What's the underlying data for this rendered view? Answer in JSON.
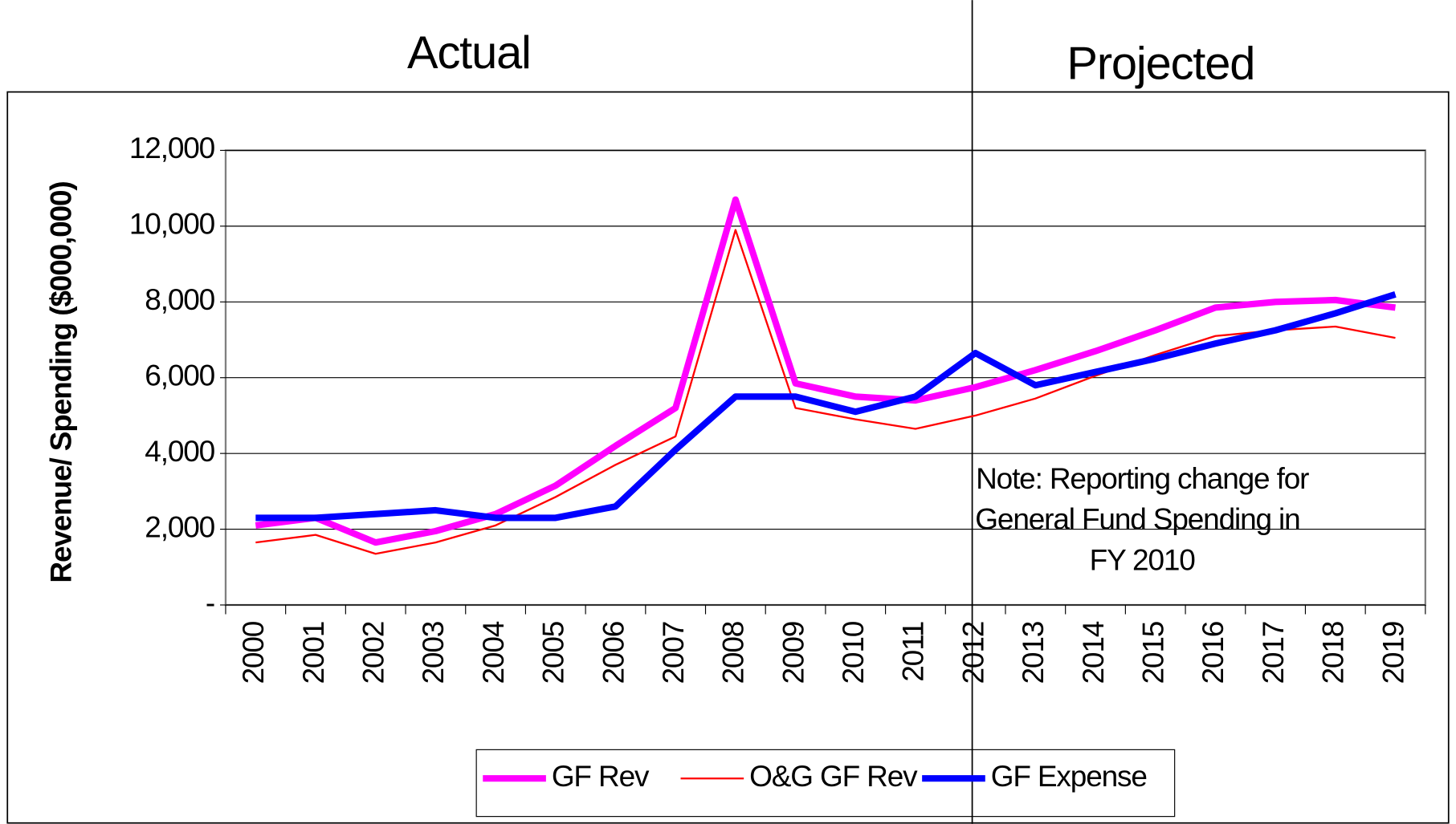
{
  "chart_data": {
    "type": "line",
    "annotations": [
      "Actual",
      "Projected",
      "Note: Reporting change for",
      "General Fund Spending in",
      "FY 2010"
    ],
    "y_label": "Revenue/ Spending ($000,000)",
    "categories": [
      "2000",
      "2001",
      "2002",
      "2003",
      "2004",
      "2005",
      "2006",
      "2007",
      "2008",
      "2009",
      "2010",
      "2011",
      "2012",
      "2013",
      "2014",
      "2015",
      "2016",
      "2017",
      "2018",
      "2019"
    ],
    "series": [
      {
        "name": "GF Rev",
        "color": "#ff00ff",
        "values": [
          2100,
          2300,
          1650,
          1950,
          2400,
          3150,
          4200,
          5200,
          10700,
          5850,
          5500,
          5400,
          5750,
          6200,
          6700,
          7250,
          7850,
          8000,
          8050,
          7850
        ]
      },
      {
        "name": "O&G GF Rev",
        "color": "#ff0000",
        "values": [
          1650,
          1850,
          1350,
          1650,
          2100,
          2850,
          3700,
          4450,
          9900,
          5200,
          4900,
          4650,
          5000,
          5450,
          6050,
          6600,
          7100,
          7250,
          7350,
          7050
        ]
      },
      {
        "name": "GF Expense",
        "color": "#0000ff",
        "values": [
          2300,
          2300,
          2400,
          2500,
          2300,
          2300,
          2600,
          4100,
          5500,
          5500,
          5100,
          5500,
          6650,
          5800,
          6150,
          6500,
          6900,
          7250,
          7700,
          8200
        ]
      }
    ],
    "ylim": [
      0,
      12000
    ],
    "yticks": [
      {
        "value": 0,
        "label": "-"
      },
      {
        "value": 2000,
        "label": "2,000"
      },
      {
        "value": 4000,
        "label": "4,000"
      },
      {
        "value": 6000,
        "label": "6,000"
      },
      {
        "value": 8000,
        "label": "8,000"
      },
      {
        "value": 10000,
        "label": "10,000"
      },
      {
        "value": 12000,
        "label": "12,000"
      }
    ],
    "grid": true,
    "legend": "bottom"
  }
}
